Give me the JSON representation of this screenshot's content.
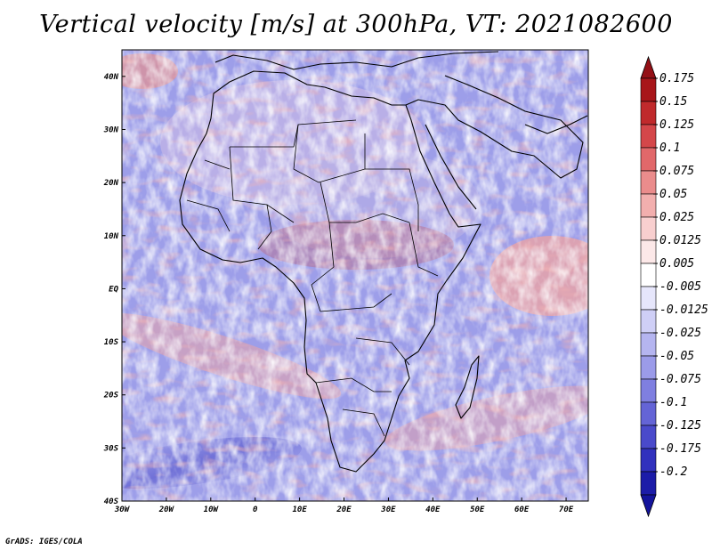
{
  "title": "Vertical velocity [m/s] at 300hPa, VT: 2021082600",
  "footer": "GrADS: IGES/COLA",
  "map": {
    "x_range": [
      -30,
      75
    ],
    "y_range": [
      -40,
      45
    ],
    "lon_ticks": [
      "30W",
      "20W",
      "10W",
      "0",
      "10E",
      "20E",
      "30E",
      "40E",
      "50E",
      "60E",
      "70E"
    ],
    "lat_ticks": [
      "40N",
      "30N",
      "20N",
      "10N",
      "EQ",
      "10S",
      "20S",
      "30S",
      "40S"
    ]
  },
  "colorbar": {
    "levels": [
      {
        "label": "0.175",
        "color": "#a8161a"
      },
      {
        "label": "0.15",
        "color": "#c02a2c"
      },
      {
        "label": "0.125",
        "color": "#d4474a"
      },
      {
        "label": "0.1",
        "color": "#e1686a"
      },
      {
        "label": "0.075",
        "color": "#ea8c8c"
      },
      {
        "label": "0.05",
        "color": "#f2afae"
      },
      {
        "label": "0.025",
        "color": "#f8cfcf"
      },
      {
        "label": "0.0125",
        "color": "#fce8e8"
      },
      {
        "label": "0.005",
        "color": "#ffffff"
      },
      {
        "label": "-0.005",
        "color": "#e6e6fb"
      },
      {
        "label": "-0.0125",
        "color": "#cfcff6"
      },
      {
        "label": "-0.025",
        "color": "#b5b5f0"
      },
      {
        "label": "-0.05",
        "color": "#9b9be9"
      },
      {
        "label": "-0.075",
        "color": "#7f7fe0"
      },
      {
        "label": "-0.1",
        "color": "#6464d6"
      },
      {
        "label": "-0.125",
        "color": "#4a4acb"
      },
      {
        "label": "-0.175",
        "color": "#3131bd"
      },
      {
        "label": "-0.2",
        "color": "#1c1ca8"
      }
    ],
    "top_arrow_color": "#941016",
    "bottom_arrow_color": "#14149c"
  }
}
